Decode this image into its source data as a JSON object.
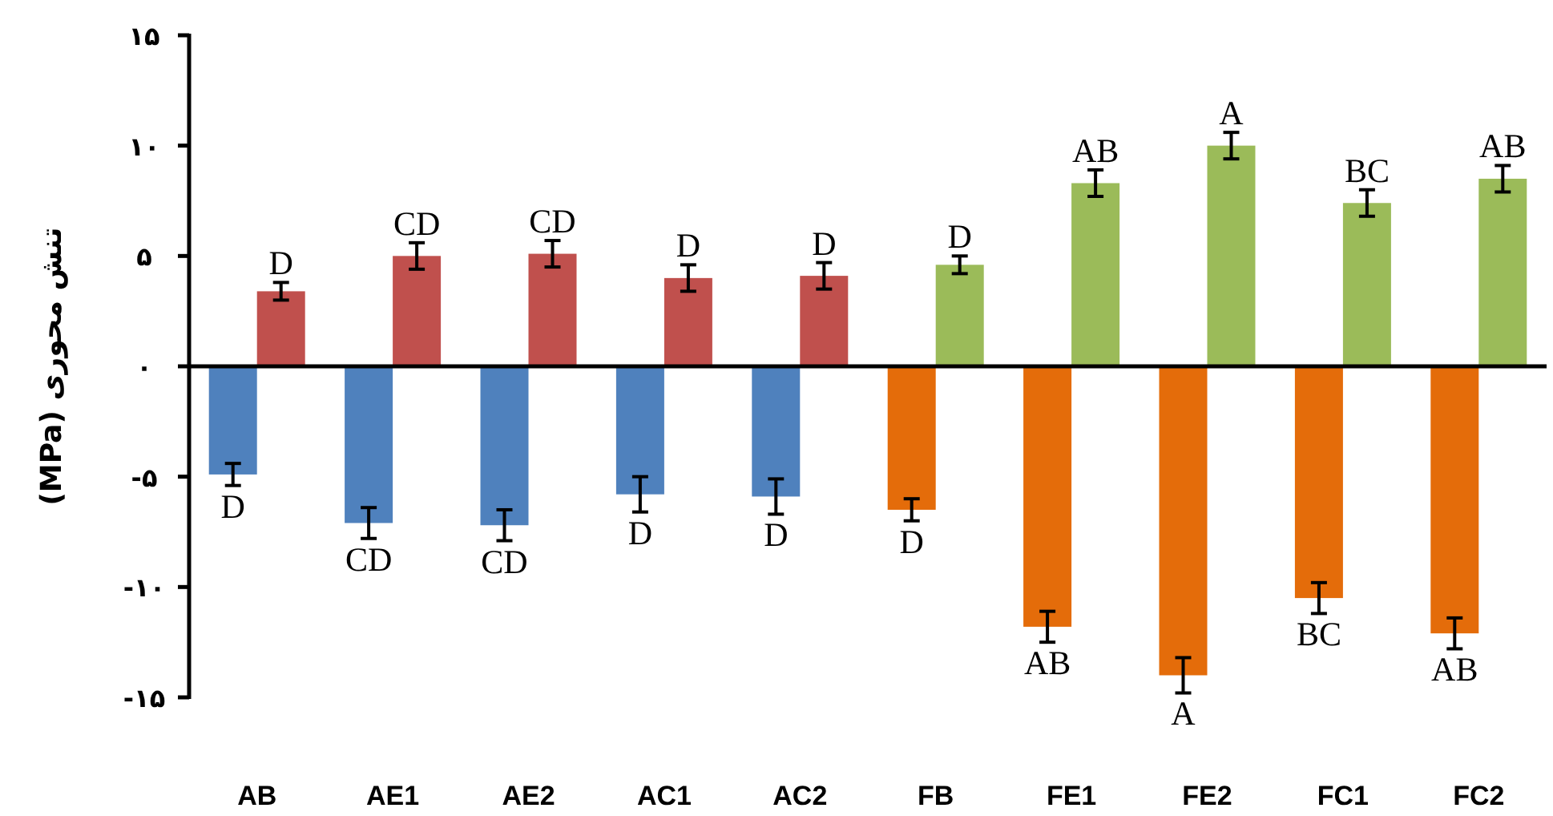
{
  "chart_data": {
    "type": "bar",
    "ylabel": "تنش محوری (MPa)",
    "categories": [
      "AB",
      "AE1",
      "AE2",
      "AC1",
      "AC2",
      "FB",
      "FE1",
      "FE2",
      "FC1",
      "FC2"
    ],
    "series": [
      {
        "colors": [
          "#4f81bd",
          "#4f81bd",
          "#4f81bd",
          "#4f81bd",
          "#4f81bd",
          "#e46c0a",
          "#e46c0a",
          "#e46c0a",
          "#e46c0a",
          "#e46c0a"
        ],
        "values": [
          -4.9,
          -7.1,
          -7.2,
          -5.8,
          -5.9,
          -6.5,
          -11.8,
          -14.0,
          -10.5,
          -12.1
        ],
        "errors": [
          0.5,
          0.7,
          0.7,
          0.8,
          0.8,
          0.5,
          0.7,
          0.8,
          0.7,
          0.7
        ],
        "value_labels": [
          "D",
          "CD",
          "CD",
          "D",
          "D",
          "D",
          "AB",
          "A",
          "BC",
          "AB"
        ]
      },
      {
        "colors": [
          "#c0504d",
          "#c0504d",
          "#c0504d",
          "#c0504d",
          "#c0504d",
          "#9bbb59",
          "#9bbb59",
          "#9bbb59",
          "#9bbb59",
          "#9bbb59"
        ],
        "values": [
          3.4,
          5.0,
          5.1,
          4.0,
          4.1,
          4.6,
          8.3,
          10.0,
          7.4,
          8.5
        ],
        "errors": [
          0.4,
          0.6,
          0.6,
          0.6,
          0.6,
          0.4,
          0.6,
          0.6,
          0.6,
          0.6
        ],
        "value_labels": [
          "D",
          "CD",
          "CD",
          "D",
          "D",
          "D",
          "AB",
          "A",
          "BC",
          "AB"
        ]
      }
    ],
    "ylim": [
      -15,
      15
    ],
    "yticks": [
      {
        "value": 15,
        "label": "۱۵"
      },
      {
        "value": 10,
        "label": "۱۰"
      },
      {
        "value": 5,
        "label": "۵"
      },
      {
        "value": 0,
        "label": "۰"
      },
      {
        "value": -5,
        "label": "-۵"
      },
      {
        "value": -10,
        "label": "-۱۰"
      },
      {
        "value": -15,
        "label": "-۱۵"
      }
    ]
  }
}
